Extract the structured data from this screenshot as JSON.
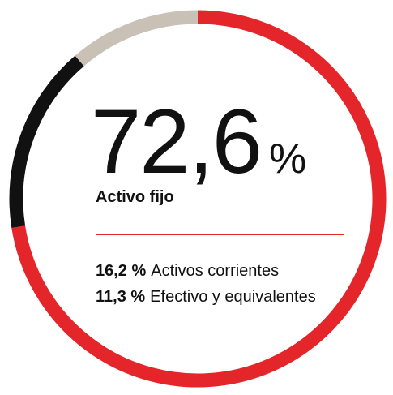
{
  "chart_data": {
    "type": "donut",
    "series": [
      {
        "name": "Activo fijo",
        "color": "#e4262b",
        "value": 72.6,
        "value_label": "72,6"
      },
      {
        "name": "Activos corrientes",
        "color": "#111111",
        "value": 16.2,
        "value_label": "16,2 %"
      },
      {
        "name": "Efectivo y equivalentes",
        "color": "#c9c0b6",
        "value": 11.3,
        "value_label": "11,3 %"
      }
    ],
    "unit_label": "%"
  }
}
